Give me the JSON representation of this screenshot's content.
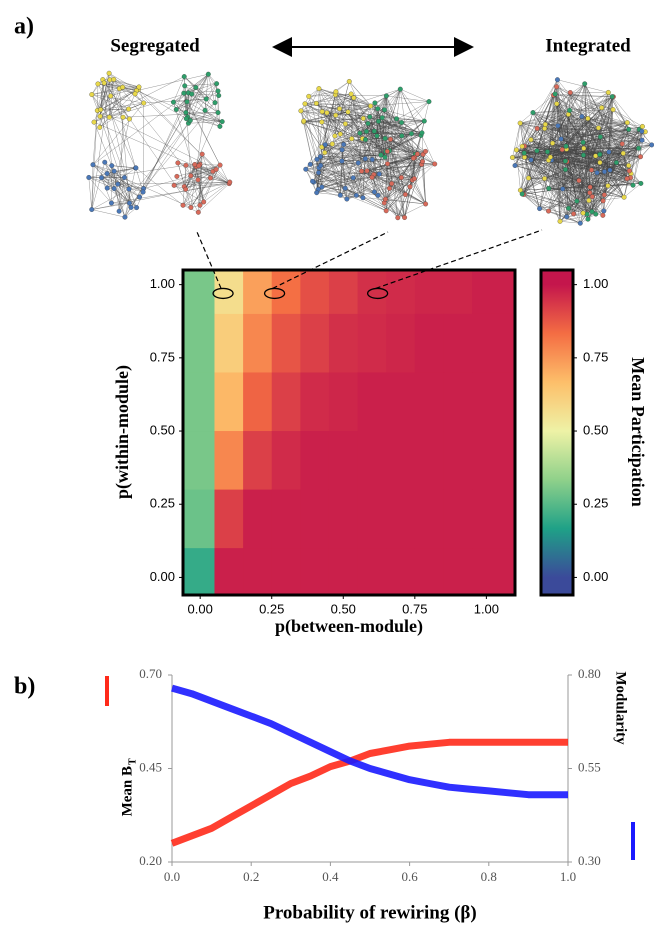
{
  "chart_data": [
    {
      "type": "heatmap",
      "panel_label": "a)",
      "annotations": [
        "Segregated",
        "Integrated"
      ],
      "xlabel": "p(between-module)",
      "ylabel": "p(within-module)",
      "x": [
        0,
        0.1,
        0.2,
        0.3,
        0.4,
        0.5,
        0.6,
        0.7,
        0.8,
        0.9,
        1.0
      ],
      "y": [
        1.0,
        0.8,
        0.6,
        0.4,
        0.2,
        0.0
      ],
      "values": [
        [
          0.3,
          0.57,
          0.73,
          0.83,
          0.89,
          0.92,
          0.95,
          0.96,
          0.97,
          0.97,
          0.98
        ],
        [
          0.3,
          0.62,
          0.78,
          0.88,
          0.92,
          0.95,
          0.96,
          0.97,
          0.98,
          0.98,
          0.98
        ],
        [
          0.3,
          0.68,
          0.85,
          0.92,
          0.96,
          0.97,
          0.98,
          0.98,
          0.98,
          0.98,
          0.98
        ],
        [
          0.3,
          0.78,
          0.92,
          0.96,
          0.98,
          0.98,
          0.98,
          0.98,
          0.98,
          0.98,
          0.98
        ],
        [
          0.28,
          0.92,
          0.98,
          0.98,
          0.98,
          0.98,
          0.98,
          0.98,
          0.98,
          0.98,
          0.98
        ],
        [
          0.2,
          0.98,
          0.98,
          0.98,
          0.98,
          0.98,
          0.98,
          0.98,
          0.98,
          0.98,
          0.98
        ]
      ],
      "highlights": [
        [
          0.08,
          0.97
        ],
        [
          0.26,
          0.97
        ],
        [
          0.62,
          0.97
        ]
      ],
      "xlim": [
        -0.06,
        1.1
      ],
      "ylim": [
        -0.06,
        1.05
      ],
      "xticks": [
        {
          "value": 0,
          "label": "0.00"
        },
        {
          "value": 0.25,
          "label": "0.25"
        },
        {
          "value": 0.5,
          "label": "0.50"
        },
        {
          "value": 0.75,
          "label": "0.75"
        },
        {
          "value": 1,
          "label": "1.00"
        }
      ],
      "yticks": [
        {
          "value": 0,
          "label": "0.00"
        },
        {
          "value": 0.25,
          "label": "0.25"
        },
        {
          "value": 0.5,
          "label": "0.50"
        },
        {
          "value": 0.75,
          "label": "0.75"
        },
        {
          "value": 1,
          "label": "1.00"
        }
      ],
      "colorbar": {
        "label": "Mean Participation",
        "lim": [
          -0.06,
          1.05
        ],
        "colors": [
          "#3b4a9a",
          "#1fa187",
          "#8fd18a",
          "#eef2a6",
          "#fdbf6a",
          "#f46d43",
          "#c4164c"
        ],
        "ticks": [
          {
            "value": 0,
            "label": "0.00"
          },
          {
            "value": 0.25,
            "label": "0.25"
          },
          {
            "value": 0.5,
            "label": "0.50"
          },
          {
            "value": 0.75,
            "label": "0.75"
          },
          {
            "value": 1,
            "label": "1.00"
          }
        ]
      }
    },
    {
      "type": "line",
      "panel_label": "b)",
      "xlabel": "Probability of rewiring (β)",
      "x": [
        0,
        0.05,
        0.1,
        0.15,
        0.2,
        0.25,
        0.3,
        0.35,
        0.4,
        0.45,
        0.5,
        0.55,
        0.6,
        0.65,
        0.7,
        0.75,
        0.8,
        0.85,
        0.9,
        0.95,
        1.0
      ],
      "series": [
        {
          "name": "Mean B",
          "name_subscript": "T",
          "color": "#ff2a1a",
          "values": [
            0.25,
            0.27,
            0.29,
            0.32,
            0.35,
            0.38,
            0.41,
            0.43,
            0.455,
            0.47,
            0.49,
            0.5,
            0.51,
            0.515,
            0.52,
            0.52,
            0.52,
            0.52,
            0.52,
            0.52,
            0.52
          ]
        },
        {
          "name": "Modularity",
          "color": "#1a1aff",
          "axis": "y2",
          "values": [
            0.765,
            0.75,
            0.73,
            0.71,
            0.69,
            0.67,
            0.645,
            0.62,
            0.595,
            0.57,
            0.55,
            0.535,
            0.52,
            0.51,
            0.5,
            0.495,
            0.49,
            0.485,
            0.48,
            0.48,
            0.48
          ]
        }
      ],
      "xlim": [
        0,
        1
      ],
      "ylim": [
        0.2,
        0.7
      ],
      "y2lim": [
        0.3,
        0.8
      ],
      "xticks": [
        {
          "value": 0,
          "label": "0.0"
        },
        {
          "value": 0.2,
          "label": "0.2"
        },
        {
          "value": 0.4,
          "label": "0.4"
        },
        {
          "value": 0.6,
          "label": "0.6"
        },
        {
          "value": 0.8,
          "label": "0.8"
        },
        {
          "value": 1,
          "label": "1.0"
        }
      ],
      "yticks": [
        {
          "value": 0.2,
          "label": "0.20"
        },
        {
          "value": 0.45,
          "label": "0.45"
        },
        {
          "value": 0.7,
          "label": "0.70"
        }
      ],
      "y2ticks": [
        {
          "value": 0.3,
          "label": "0.30"
        },
        {
          "value": 0.55,
          "label": "0.55"
        },
        {
          "value": 0.8,
          "label": "0.80"
        }
      ]
    }
  ]
}
